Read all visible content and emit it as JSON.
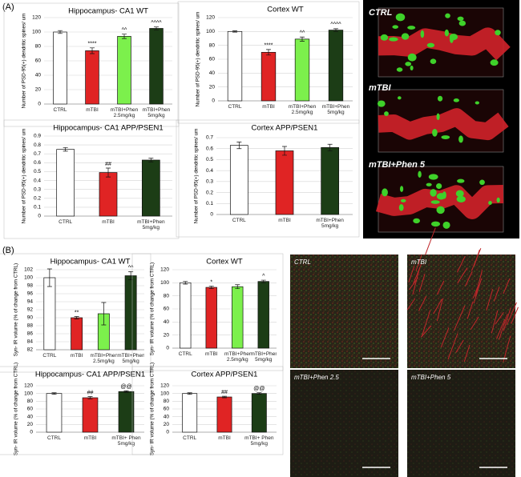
{
  "panels": [
    "(A)",
    "(B)"
  ],
  "images": {
    "top": [
      "CTRL",
      "mTBI",
      "mTBI+Phen 5"
    ],
    "bottom": [
      "CTRL",
      "mTBI",
      "mTBI+Phen 2.5",
      "mTBI+Phen 5"
    ]
  },
  "chart_data": [
    {
      "type": "bar",
      "title": "Hippocampus- CA1 WT",
      "y_label": "Number of PSD-95(+) dendritic spines/ um",
      "categories": [
        "CTRL",
        "mTBI",
        "mTBI+Phen 2.5mg/kg",
        "mTBI+Phen 5mg/kg"
      ],
      "values": [
        100,
        74,
        94,
        105
      ],
      "errors": [
        2,
        4,
        3,
        2
      ],
      "annotations": [
        null,
        "****",
        "^^",
        "^^^^"
      ],
      "colors": [
        "#ffffff",
        "#e02424",
        "#7cf04c",
        "#1c3d16"
      ],
      "ylim": [
        0,
        120
      ],
      "yticks": [
        0,
        20,
        40,
        60,
        80,
        100,
        120
      ],
      "grid": true
    },
    {
      "type": "bar",
      "title": "Cortex WT",
      "y_label": "Number of PSD-95(+) dendritic spines/ um",
      "categories": [
        "CTRL",
        "mTBI",
        "mTBI+Phen 2.5mg/kg",
        "mTBI+Phen 5mg/kg"
      ],
      "values": [
        100,
        70,
        89,
        102
      ],
      "errors": [
        1,
        4,
        3,
        2
      ],
      "annotations": [
        null,
        "****",
        "^^",
        "^^^^"
      ],
      "colors": [
        "#ffffff",
        "#e02424",
        "#7cf04c",
        "#1c3d16"
      ],
      "ylim": [
        0,
        120
      ],
      "yticks": [
        0,
        20,
        40,
        60,
        80,
        100,
        120
      ],
      "grid": true
    },
    {
      "type": "bar",
      "title": "Hippocampus- CA1 APP/PSEN1",
      "y_label": "Number of PSD-95(+) dendritic spines/ um",
      "categories": [
        "CTRL",
        "mTBI",
        "mTBI+Phen 5mg/kg"
      ],
      "values": [
        0.75,
        0.49,
        0.63
      ],
      "errors": [
        0.02,
        0.05,
        0.02
      ],
      "annotations": [
        null,
        "##",
        null
      ],
      "colors": [
        "#ffffff",
        "#e02424",
        "#1c3d16"
      ],
      "ylim": [
        0,
        0.9
      ],
      "yticks": [
        0,
        0.1,
        0.2,
        0.3,
        0.4,
        0.5,
        0.6,
        0.7,
        0.8,
        0.9
      ],
      "grid": true
    },
    {
      "type": "bar",
      "title": "Cortex APP/PSEN1",
      "y_label": "Number of PSD-95(+) dendritic spines/ um",
      "categories": [
        "CTRL",
        "mTBI",
        "mTBI+Phen 5mg/kg"
      ],
      "values": [
        0.63,
        0.58,
        0.61
      ],
      "errors": [
        0.03,
        0.04,
        0.03
      ],
      "annotations": [
        null,
        null,
        null
      ],
      "colors": [
        "#ffffff",
        "#e02424",
        "#1c3d16"
      ],
      "ylim": [
        0,
        0.7
      ],
      "yticks": [
        0,
        0.1,
        0.2,
        0.3,
        0.4,
        0.5,
        0.6,
        0.7
      ],
      "grid": true
    },
    {
      "type": "bar",
      "title": "Hippocampus- CA1 WT",
      "y_label": "Syn- IR volume (% of change from CTRL)",
      "categories": [
        "CTRL",
        "mTBI",
        "mTBI+Phen 2.5mg/kg",
        "mTBI+Phen 5mg/kg"
      ],
      "values": [
        100,
        90,
        91,
        100.5
      ],
      "errors": [
        2.2,
        0.3,
        2.8,
        1
      ],
      "annotations": [
        null,
        "**",
        null,
        "^^"
      ],
      "colors": [
        "#ffffff",
        "#e02424",
        "#7cf04c",
        "#1c3d16"
      ],
      "ylim": [
        82,
        102
      ],
      "yticks": [
        82,
        84,
        86,
        88,
        90,
        92,
        94,
        96,
        98,
        100,
        102
      ],
      "grid": true
    },
    {
      "type": "bar",
      "title": "Cortex WT",
      "y_label": "Syn- IR volume (% of change from CTRL)",
      "categories": [
        "CTRL",
        "mTBI",
        "mTBI+Phen 2.5mg/kg",
        "mTBI+Phen 5mg/kg"
      ],
      "values": [
        100,
        93,
        94,
        102
      ],
      "errors": [
        2,
        2,
        3,
        2
      ],
      "annotations": [
        null,
        "*",
        null,
        "^"
      ],
      "colors": [
        "#ffffff",
        "#e02424",
        "#7cf04c",
        "#1c3d16"
      ],
      "ylim": [
        0,
        120
      ],
      "yticks": [
        0,
        20,
        40,
        60,
        80,
        100,
        120
      ],
      "grid": true
    },
    {
      "type": "bar",
      "title": "Hippocampus- CA1 APP/PSEN1",
      "y_label": "Syn- IR volume (% of change from CTRL)",
      "categories": [
        "CTRL",
        "mTBI",
        "mTBI+ Phen 5mg/kg"
      ],
      "values": [
        100,
        89,
        105
      ],
      "errors": [
        2,
        3,
        2
      ],
      "annotations": [
        null,
        "##",
        "@@"
      ],
      "colors": [
        "#ffffff",
        "#e02424",
        "#1c3d16"
      ],
      "ylim": [
        0,
        120
      ],
      "yticks": [
        0,
        20,
        40,
        60,
        80,
        100,
        120
      ],
      "grid": true
    },
    {
      "type": "bar",
      "title": "Cortex APP/PSEN1",
      "y_label": "Syn- IR volume (% of change from CTRL)",
      "categories": [
        "CTRL",
        "mTBI",
        "mTBI+ Phen 5mg/kg"
      ],
      "values": [
        100,
        91,
        100
      ],
      "errors": [
        2,
        2,
        2
      ],
      "annotations": [
        null,
        "##",
        "@@"
      ],
      "colors": [
        "#ffffff",
        "#e02424",
        "#1c3d16"
      ],
      "ylim": [
        0,
        120
      ],
      "yticks": [
        0,
        20,
        40,
        60,
        80,
        100,
        120
      ],
      "grid": true
    }
  ]
}
